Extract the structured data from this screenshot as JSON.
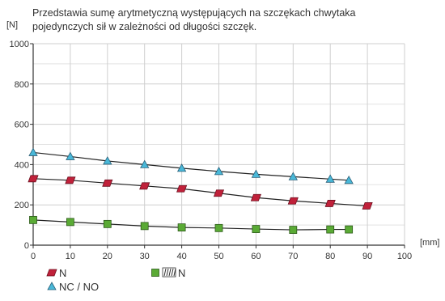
{
  "chart_data": {
    "type": "line",
    "description_lines": [
      "Przedstawia sumę arytmetyczną występujących na szczękach chwytaka",
      "pojedynczych sił w zależności od długości szczęk."
    ],
    "ylabel": "[N]",
    "xlabel": "[mm]",
    "xlim": [
      0,
      100
    ],
    "ylim": [
      0,
      1000
    ],
    "x_ticks": [
      0,
      10,
      20,
      30,
      40,
      50,
      60,
      70,
      80,
      90,
      100
    ],
    "y_ticks": [
      0,
      200,
      400,
      600,
      800,
      1000
    ],
    "grid": true,
    "legend_position": "bottom-left",
    "series": [
      {
        "name": "N",
        "marker": "parallelogram",
        "color": "#c0213a",
        "points": [
          [
            0,
            330
          ],
          [
            10,
            322
          ],
          [
            20,
            308
          ],
          [
            30,
            294
          ],
          [
            40,
            280
          ],
          [
            50,
            258
          ],
          [
            60,
            236
          ],
          [
            70,
            220
          ],
          [
            80,
            207
          ],
          [
            90,
            195
          ]
        ]
      },
      {
        "name": "NC / NO",
        "marker": "triangle",
        "color": "#49b8d8",
        "points": [
          [
            0,
            460
          ],
          [
            10,
            440
          ],
          [
            20,
            418
          ],
          [
            30,
            400
          ],
          [
            40,
            382
          ],
          [
            50,
            366
          ],
          [
            60,
            352
          ],
          [
            70,
            340
          ],
          [
            80,
            328
          ],
          [
            85,
            322
          ]
        ]
      },
      {
        "name": "N",
        "marker": "square",
        "color": "#5aaa35",
        "spring_icon": true,
        "points": [
          [
            0,
            125
          ],
          [
            10,
            115
          ],
          [
            20,
            105
          ],
          [
            30,
            95
          ],
          [
            40,
            88
          ],
          [
            50,
            85
          ],
          [
            60,
            80
          ],
          [
            70,
            76
          ],
          [
            80,
            78
          ],
          [
            85,
            78
          ]
        ]
      }
    ]
  }
}
